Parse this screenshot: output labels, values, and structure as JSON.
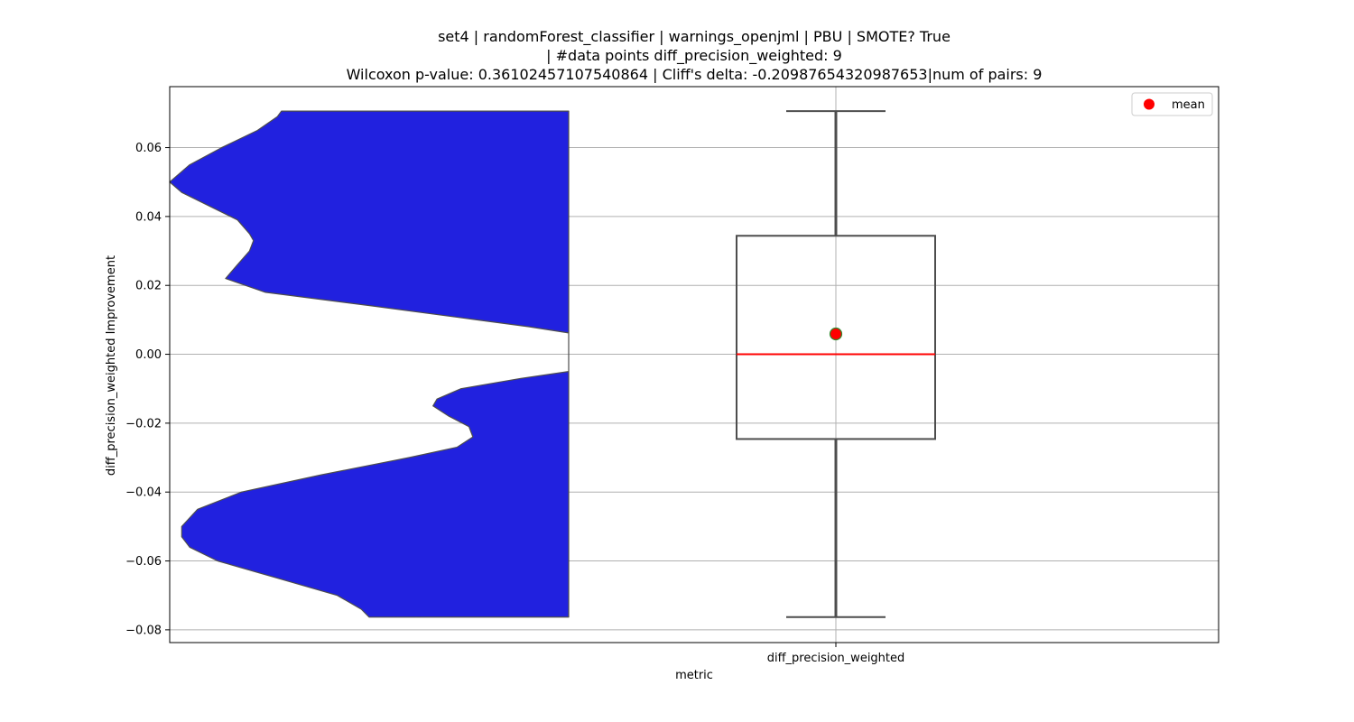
{
  "chart_data": {
    "type": "violin+box",
    "title_lines": [
      "set4 | randomForest_classifier | warnings_openjml | PBU | SMOTE? True",
      "| #data points diff_precision_weighted: 9",
      "Wilcoxon p-value: 0.36102457107540864 | Cliff's delta: -0.20987654320987653|num of pairs: 9"
    ],
    "xlabel": "metric",
    "ylabel": "diff_precision_weighted Improvement",
    "category": "diff_precision_weighted",
    "ylim": [
      -0.0837,
      0.0777
    ],
    "yticks": [
      -0.08,
      -0.06,
      -0.04,
      -0.02,
      0.0,
      0.02,
      0.04,
      0.06
    ],
    "ytick_labels": [
      "−0.08",
      "−0.06",
      "−0.04",
      "−0.02",
      "0.00",
      "0.02",
      "0.04",
      "0.06"
    ],
    "grid": true,
    "box": {
      "min": -0.0763,
      "q1": -0.0246,
      "median": 0.0,
      "q3": 0.0344,
      "max": 0.0706,
      "mean": 0.0059
    },
    "violin_profile": [
      [
        0.0706,
        0.28
      ],
      [
        0.069,
        0.27
      ],
      [
        0.065,
        0.22
      ],
      [
        0.06,
        0.13
      ],
      [
        0.055,
        0.05
      ],
      [
        0.052,
        0.02
      ],
      [
        0.05,
        0.0
      ],
      [
        0.047,
        0.03
      ],
      [
        0.043,
        0.1
      ],
      [
        0.039,
        0.17
      ],
      [
        0.035,
        0.2
      ],
      [
        0.033,
        0.21
      ],
      [
        0.03,
        0.2
      ],
      [
        0.026,
        0.17
      ],
      [
        0.022,
        0.14
      ],
      [
        0.018,
        0.24
      ],
      [
        0.014,
        0.51
      ],
      [
        0.01,
        0.77
      ],
      [
        0.008,
        0.9
      ],
      [
        0.0062,
        1.0
      ],
      [
        0.003,
        1.0
      ],
      [
        0.0,
        1.0
      ],
      [
        -0.003,
        1.0
      ],
      [
        -0.005,
        1.0
      ],
      [
        -0.007,
        0.88
      ],
      [
        -0.01,
        0.73
      ],
      [
        -0.013,
        0.67
      ],
      [
        -0.015,
        0.66
      ],
      [
        -0.018,
        0.7
      ],
      [
        -0.021,
        0.75
      ],
      [
        -0.024,
        0.76
      ],
      [
        -0.027,
        0.72
      ],
      [
        -0.03,
        0.6
      ],
      [
        -0.035,
        0.38
      ],
      [
        -0.04,
        0.18
      ],
      [
        -0.045,
        0.07
      ],
      [
        -0.05,
        0.03
      ],
      [
        -0.053,
        0.03
      ],
      [
        -0.056,
        0.05
      ],
      [
        -0.06,
        0.12
      ],
      [
        -0.065,
        0.27
      ],
      [
        -0.07,
        0.42
      ],
      [
        -0.074,
        0.48
      ],
      [
        -0.0763,
        0.5
      ]
    ],
    "colors": {
      "violin_fill": "#2121df",
      "violin_edge": "#4d4d4d",
      "box_edge": "#4d4d4d",
      "median": "#ff0000",
      "mean_fill": "#ff0000",
      "mean_edge": "#2e8b2e",
      "grid": "#b0b0b0"
    },
    "legend": {
      "position": "top-right",
      "label": "mean"
    }
  }
}
